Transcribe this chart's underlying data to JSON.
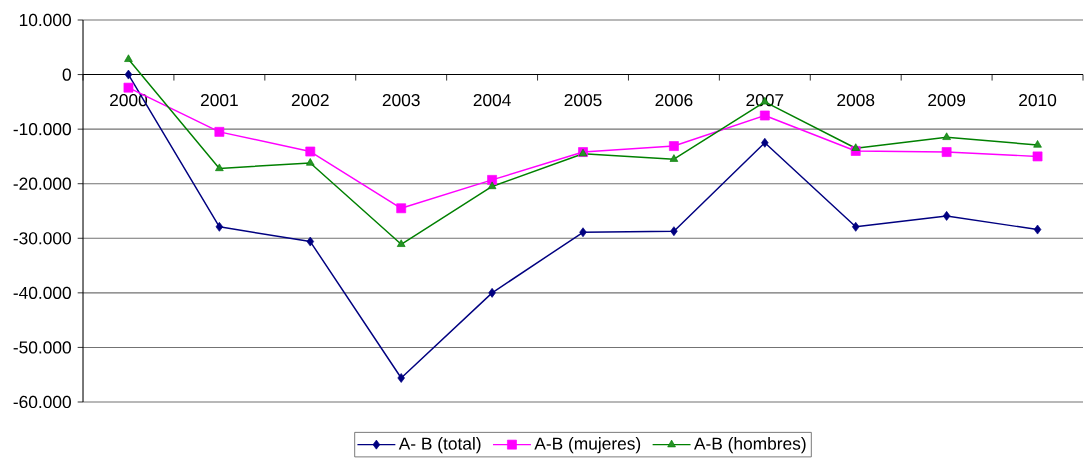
{
  "chart_data": {
    "type": "line",
    "categories": [
      "2000",
      "2001",
      "2002",
      "2003",
      "2004",
      "2005",
      "2006",
      "2007",
      "2008",
      "2009",
      "2010"
    ],
    "series": [
      {
        "name": "A- B (total)",
        "color": "#000080",
        "marker": "diamond",
        "values": [
          0,
          -27900,
          -30600,
          -55600,
          -40000,
          -28900,
          -28700,
          -12500,
          -27900,
          -25900,
          -28400
        ]
      },
      {
        "name": "A-B (mujeres)",
        "color": "#ff00ff",
        "marker": "square",
        "values": [
          -2400,
          -10500,
          -14100,
          -24500,
          -19300,
          -14200,
          -13100,
          -7500,
          -14000,
          -14200,
          -15000
        ]
      },
      {
        "name": "A-B (hombres)",
        "color": "#008000",
        "marker": "triangle",
        "values": [
          2800,
          -17200,
          -16200,
          -31100,
          -20500,
          -14500,
          -15500,
          -5000,
          -13500,
          -11500,
          -12900
        ]
      }
    ],
    "ylim": [
      -60000,
      10000
    ],
    "yticks": [
      {
        "value": -60000,
        "label": "-60.000"
      },
      {
        "value": -50000,
        "label": "-50.000"
      },
      {
        "value": -40000,
        "label": "-40.000"
      },
      {
        "value": -30000,
        "label": "-30.000"
      },
      {
        "value": -20000,
        "label": "-20.000"
      },
      {
        "value": -10000,
        "label": "-10.000"
      },
      0,
      {
        "value": 10000,
        "label": "10.000"
      }
    ],
    "grid": "y",
    "legend": "bottom"
  }
}
